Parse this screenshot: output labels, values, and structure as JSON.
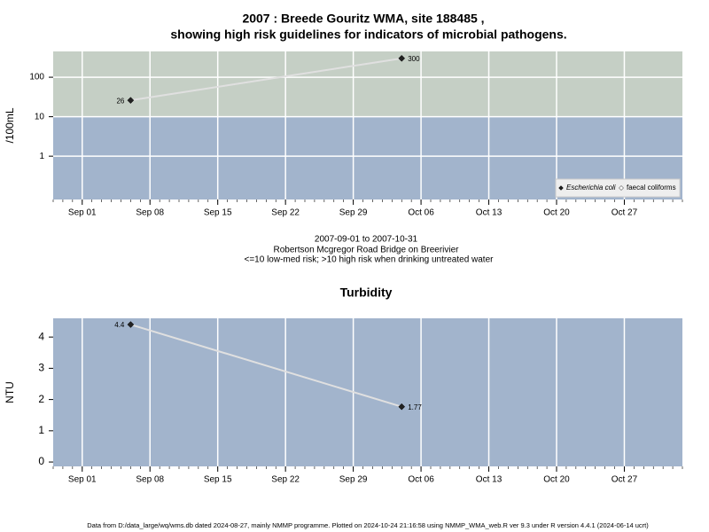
{
  "chart_data": [
    {
      "type": "line",
      "title": "2007 : Breede Gouritz WMA, site 188485 ,",
      "subtitle": "showing high risk guidelines for indicators of microbial pathogens.",
      "ylabel": "/100mL",
      "log_scale": true,
      "threshold": 10,
      "x": [
        "2007-09-06",
        "2007-10-04"
      ],
      "series": [
        {
          "name": "Escherichia coli",
          "color": "#222222",
          "values": [
            26,
            300
          ]
        },
        {
          "name": "faecal coliforms",
          "color": "#ffffff",
          "values": [
            null,
            null
          ]
        }
      ],
      "xlim": [
        "2007-08-29",
        "2007-11-02"
      ],
      "xticks": [
        {
          "value": "2007-09-01",
          "label": "Sep 01"
        },
        {
          "value": "2007-09-08",
          "label": "Sep 08"
        },
        {
          "value": "2007-09-15",
          "label": "Sep 15"
        },
        {
          "value": "2007-09-22",
          "label": "Sep 22"
        },
        {
          "value": "2007-09-29",
          "label": "Sep 29"
        },
        {
          "value": "2007-10-06",
          "label": "Oct 06"
        },
        {
          "value": "2007-10-13",
          "label": "Oct 13"
        },
        {
          "value": "2007-10-20",
          "label": "Oct 20"
        },
        {
          "value": "2007-10-27",
          "label": "Oct 27"
        }
      ],
      "ylim": [
        0.08,
        450
      ],
      "yticks": [
        1,
        10,
        100
      ],
      "grid": true,
      "legend": "bottom-right",
      "notes": [
        "2007-09-01 to 2007-10-31",
        "Robertson Mcgregor Road Bridge on Breerivier",
        "<=10 low-med risk; >10 high risk when drinking untreated water"
      ]
    },
    {
      "type": "line",
      "title": "Turbidity",
      "ylabel": "NTU",
      "log_scale": false,
      "x": [
        "2007-09-06",
        "2007-10-04"
      ],
      "series": [
        {
          "name": "Turbidity",
          "color": "#222222",
          "values": [
            4.4,
            1.77
          ]
        }
      ],
      "xlim": [
        "2007-08-29",
        "2007-11-02"
      ],
      "xticks": [
        {
          "value": "2007-09-01",
          "label": "Sep 01"
        },
        {
          "value": "2007-09-08",
          "label": "Sep 08"
        },
        {
          "value": "2007-09-15",
          "label": "Sep 15"
        },
        {
          "value": "2007-09-22",
          "label": "Sep 22"
        },
        {
          "value": "2007-09-29",
          "label": "Sep 29"
        },
        {
          "value": "2007-10-06",
          "label": "Oct 06"
        },
        {
          "value": "2007-10-13",
          "label": "Oct 13"
        },
        {
          "value": "2007-10-20",
          "label": "Oct 20"
        },
        {
          "value": "2007-10-27",
          "label": "Oct 27"
        }
      ],
      "ylim": [
        -0.14,
        4.6
      ],
      "yticks": [
        0,
        1,
        2,
        3,
        4
      ],
      "grid": true
    }
  ],
  "footer": "Data from D:/data_large/wq/wms.db dated 2024-08-27, mainly NMMP programme. Plotted on 2024-10-24 21:16:58 using NMMP_WMA_web.R ver 9.3 under R version 4.4.1 (2024-06-14 ucrt)"
}
